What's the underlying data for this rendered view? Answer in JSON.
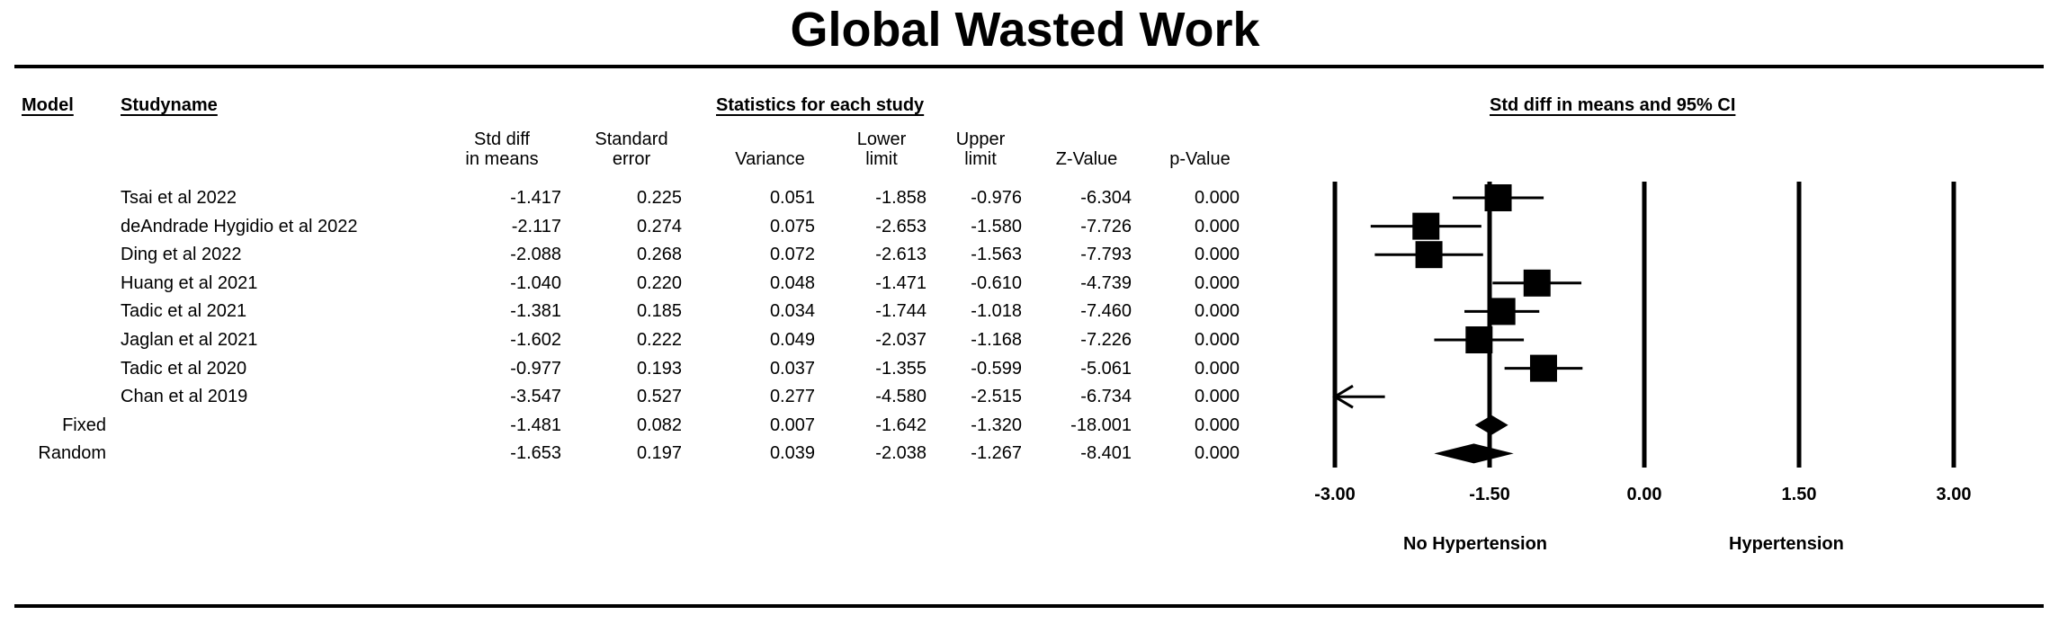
{
  "title": "Global Wasted Work",
  "headers": {
    "model": "Model",
    "study_name": "Studyname",
    "stats_group": "Statistics for each study",
    "plot_group": "Std diff in means and 95% CI"
  },
  "columns": [
    "Std diff\nin means",
    "Standard\nerror",
    "Variance",
    "Lower\nlimit",
    "Upper\nlimit",
    "Z-Value",
    "p-Value"
  ],
  "favours": {
    "left": "No Hypertension",
    "right": "Hypertension"
  },
  "chart_data": {
    "type": "forest",
    "x_ticks": [
      "-3.00",
      "-1.50",
      "0.00",
      "1.50",
      "3.00"
    ],
    "xlim": [
      -3.0,
      3.0
    ],
    "studies": [
      {
        "name": "Tsai et al 2022",
        "smd": "-1.417",
        "se": "0.225",
        "var": "0.051",
        "lower": "-1.858",
        "upper": "-0.976",
        "z": "-6.304",
        "p": "0.000"
      },
      {
        "name": "deAndrade Hygidio et al 2022",
        "smd": "-2.117",
        "se": "0.274",
        "var": "0.075",
        "lower": "-2.653",
        "upper": "-1.580",
        "z": "-7.726",
        "p": "0.000"
      },
      {
        "name": "Ding et al 2022",
        "smd": "-2.088",
        "se": "0.268",
        "var": "0.072",
        "lower": "-2.613",
        "upper": "-1.563",
        "z": "-7.793",
        "p": "0.000"
      },
      {
        "name": "Huang et al 2021",
        "smd": "-1.040",
        "se": "0.220",
        "var": "0.048",
        "lower": "-1.471",
        "upper": "-0.610",
        "z": "-4.739",
        "p": "0.000"
      },
      {
        "name": "Tadic et al 2021",
        "smd": "-1.381",
        "se": "0.185",
        "var": "0.034",
        "lower": "-1.744",
        "upper": "-1.018",
        "z": "-7.460",
        "p": "0.000"
      },
      {
        "name": "Jaglan et al 2021",
        "smd": "-1.602",
        "se": "0.222",
        "var": "0.049",
        "lower": "-2.037",
        "upper": "-1.168",
        "z": "-7.226",
        "p": "0.000"
      },
      {
        "name": "Tadic et al 2020",
        "smd": "-0.977",
        "se": "0.193",
        "var": "0.037",
        "lower": "-1.355",
        "upper": "-0.599",
        "z": "-5.061",
        "p": "0.000"
      },
      {
        "name": "Chan et al 2019",
        "smd": "-3.547",
        "se": "0.527",
        "var": "0.277",
        "lower": "-4.580",
        "upper": "-2.515",
        "z": "-6.734",
        "p": "0.000"
      }
    ],
    "summaries": [
      {
        "model": "Fixed",
        "smd": "-1.481",
        "se": "0.082",
        "var": "0.007",
        "lower": "-1.642",
        "upper": "-1.320",
        "z": "-18.001",
        "p": "0.000"
      },
      {
        "model": "Random",
        "smd": "-1.653",
        "se": "0.197",
        "var": "0.039",
        "lower": "-2.038",
        "upper": "-1.267",
        "z": "-8.401",
        "p": "0.000"
      }
    ]
  }
}
